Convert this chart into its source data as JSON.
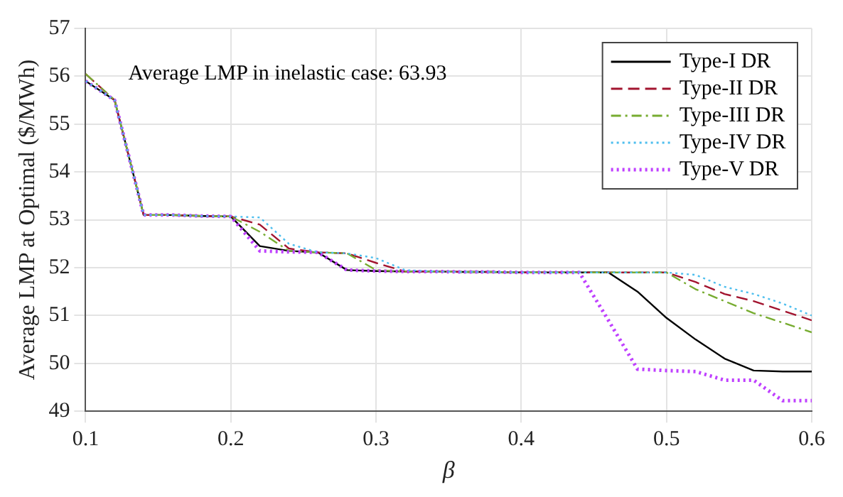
{
  "chart_data": {
    "type": "line",
    "xlabel": "β",
    "ylabel": "Average LMP at Optimal ($/MWh)",
    "annotations": [
      "Average LMP in inelastic case: 63.93"
    ],
    "x": [
      0.1,
      0.12,
      0.14,
      0.16,
      0.18,
      0.2,
      0.22,
      0.24,
      0.26,
      0.28,
      0.3,
      0.32,
      0.34,
      0.36,
      0.38,
      0.4,
      0.42,
      0.44,
      0.46,
      0.48,
      0.5,
      0.52,
      0.54,
      0.56,
      0.58,
      0.6
    ],
    "xlim": [
      0.1,
      0.6
    ],
    "xticks": [
      0.1,
      0.2,
      0.3,
      0.4,
      0.5,
      0.6
    ],
    "ylim": [
      49,
      57
    ],
    "yticks": [
      49,
      50,
      51,
      52,
      53,
      54,
      55,
      56,
      57
    ],
    "grid": true,
    "legend": "top right",
    "marker": "none",
    "series": [
      {
        "name": "Type-I DR",
        "color": "#000000",
        "line_style": "solid",
        "values": [
          55.9,
          55.5,
          53.1,
          53.1,
          53.08,
          53.07,
          52.45,
          52.35,
          52.32,
          51.95,
          51.93,
          51.92,
          51.92,
          51.91,
          51.91,
          51.9,
          51.9,
          51.9,
          51.9,
          51.5,
          50.95,
          50.5,
          50.1,
          49.85,
          49.83,
          49.83
        ]
      },
      {
        "name": "Type-II DR",
        "color": "#a2142f",
        "line_style": "dashed",
        "values": [
          56.05,
          55.5,
          53.1,
          53.1,
          53.08,
          53.07,
          52.9,
          52.4,
          52.32,
          52.3,
          52.1,
          51.92,
          51.92,
          51.91,
          51.91,
          51.9,
          51.9,
          51.9,
          51.9,
          51.9,
          51.9,
          51.7,
          51.45,
          51.3,
          51.1,
          50.9
        ]
      },
      {
        "name": "Type-III DR",
        "color": "#77ac30",
        "line_style": "dashdot",
        "values": [
          56.05,
          55.5,
          53.1,
          53.1,
          53.08,
          53.07,
          52.75,
          52.35,
          52.32,
          52.3,
          51.95,
          51.92,
          51.92,
          51.91,
          51.91,
          51.9,
          51.9,
          51.9,
          51.9,
          51.9,
          51.9,
          51.55,
          51.3,
          51.05,
          50.85,
          50.65
        ]
      },
      {
        "name": "Type-IV DR",
        "color": "#4dbeee",
        "line_style": "dotted",
        "values": [
          55.9,
          55.5,
          53.1,
          53.1,
          53.08,
          53.07,
          53.05,
          52.5,
          52.32,
          52.3,
          52.2,
          51.95,
          51.92,
          51.91,
          51.91,
          51.9,
          51.9,
          51.9,
          51.9,
          51.9,
          51.9,
          51.85,
          51.6,
          51.45,
          51.25,
          51.0
        ]
      },
      {
        "name": "Type-V DR",
        "color": "#bf40ff",
        "line_style": "dotted",
        "values": [
          55.9,
          55.5,
          53.1,
          53.1,
          53.08,
          53.07,
          52.35,
          52.33,
          52.32,
          51.95,
          51.93,
          51.92,
          51.92,
          51.91,
          51.91,
          51.9,
          51.9,
          51.9,
          50.9,
          49.88,
          49.85,
          49.83,
          49.65,
          49.65,
          49.22,
          49.22
        ]
      }
    ]
  }
}
